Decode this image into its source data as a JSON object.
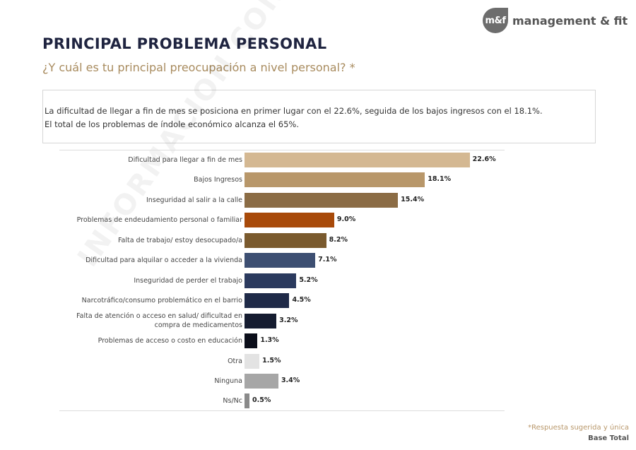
{
  "logo": {
    "mark": "m&f",
    "text": "management & fit"
  },
  "header": {
    "title": "PRINCIPAL PROBLEMA PERSONAL",
    "subtitle": "¿Y cuál es tu principal preocupación a nivel personal? *"
  },
  "summary": {
    "line1": "La dificultad de llegar a fin de mes se posiciona en primer lugar con el 22.6%, seguida de los bajos ingresos con el 18.1%.",
    "line2": "El total de los problemas de índole económico alcanza el 65%."
  },
  "watermark": "INFORMACION CONFIDENCIAL",
  "chart_data": {
    "type": "bar",
    "orientation": "horizontal",
    "categories": [
      "Dificultad para llegar a fin de mes",
      "Bajos Ingresos",
      "Inseguridad al salir a la calle",
      "Problemas de endeudamiento personal o familiar",
      "Falta de trabajo/ estoy desocupado/a",
      "Dificultad para alquilar o acceder a la vivienda",
      "Inseguridad de perder el trabajo",
      "Narcotráfico/consumo problemático en el barrio",
      "Falta de atención o acceso en salud/ dificultad en compra de medicamentos",
      "Problemas de acceso o costo en educación",
      "Otra",
      "Ninguna",
      "Ns/Nc"
    ],
    "values": [
      22.6,
      18.1,
      15.4,
      9.0,
      8.2,
      7.1,
      5.2,
      4.5,
      3.2,
      1.3,
      1.5,
      3.4,
      0.5
    ],
    "labels": [
      "22.6%",
      "18.1%",
      "15.4%",
      "9.0%",
      "8.2%",
      "7.1%",
      "5.2%",
      "4.5%",
      "3.2%",
      "1.3%",
      "1.5%",
      "3.4%",
      "0.5%"
    ],
    "colors": [
      "#d4b892",
      "#b8976a",
      "#8b6c45",
      "#a84a0a",
      "#7a5a2e",
      "#3d4f72",
      "#2b3a5e",
      "#1f2a48",
      "#151c30",
      "#0b0e1a",
      "#e3e3e3",
      "#a6a6a6",
      "#8a8a8a"
    ],
    "grid": false,
    "legend": "none"
  },
  "footer": {
    "note": "*Respuesta sugerida y única",
    "base": "Base Total"
  }
}
